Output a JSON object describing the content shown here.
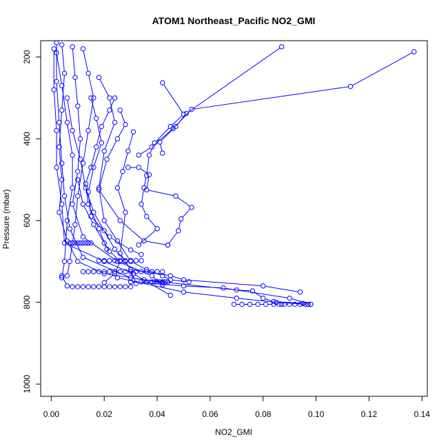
{
  "chart_data": {
    "type": "scatter",
    "title": "ATOM1 Northeast_Pacific NO2_GMI",
    "xlabel": "NO2_GMI",
    "ylabel": "Pressure (mbar)",
    "xlim": [
      -0.004,
      0.142
    ],
    "ylim": [
      1030,
      160
    ],
    "y_reversed": true,
    "x_ticks": [
      0.0,
      0.02,
      0.04,
      0.06,
      0.08,
      0.1,
      0.12,
      0.14
    ],
    "x_tick_labels": [
      "0.00",
      "0.02",
      "0.04",
      "0.06",
      "0.08",
      "0.10",
      "0.12",
      "0.14"
    ],
    "y_ticks": [
      200,
      400,
      600,
      800,
      1000
    ],
    "y_tick_labels": [
      "200",
      "400",
      "600",
      "800",
      "1000"
    ],
    "grid": false,
    "marker": "open-circle",
    "color": "#0000ff",
    "series": [
      {
        "values": [
          [
            0.004,
            170
          ],
          [
            0.005,
            240
          ],
          [
            0.004,
            330
          ],
          [
            0.003,
            420
          ],
          [
            0.004,
            500
          ],
          [
            0.003,
            580
          ],
          [
            0.006,
            650
          ],
          [
            0.01,
            700
          ],
          [
            0.02,
            730
          ],
          [
            0.04,
            750
          ]
        ]
      },
      {
        "values": [
          [
            0.002,
            165
          ],
          [
            0.002,
            260
          ],
          [
            0.003,
            360
          ],
          [
            0.004,
            460
          ],
          [
            0.005,
            540
          ],
          [
            0.007,
            620
          ],
          [
            0.012,
            690
          ],
          [
            0.03,
            740
          ],
          [
            0.042,
            752
          ]
        ]
      },
      {
        "values": [
          [
            0.001,
            180
          ],
          [
            0.001,
            280
          ],
          [
            0.002,
            380
          ],
          [
            0.002,
            470
          ],
          [
            0.004,
            560
          ],
          [
            0.005,
            655
          ],
          [
            0.02,
            700
          ],
          [
            0.031,
            730
          ],
          [
            0.045,
            783
          ]
        ]
      },
      {
        "values": [
          [
            0.008,
            175
          ],
          [
            0.009,
            250
          ],
          [
            0.01,
            320
          ],
          [
            0.011,
            400
          ],
          [
            0.01,
            480
          ],
          [
            0.008,
            560
          ],
          [
            0.012,
            640
          ],
          [
            0.025,
            700
          ],
          [
            0.038,
            735
          ],
          [
            0.042,
            757
          ]
        ]
      },
      {
        "values": [
          [
            0.012,
            180
          ],
          [
            0.014,
            240
          ],
          [
            0.016,
            300
          ],
          [
            0.014,
            380
          ],
          [
            0.012,
            460
          ],
          [
            0.01,
            540
          ],
          [
            0.009,
            610
          ],
          [
            0.008,
            655
          ],
          [
            0.007,
            700
          ],
          [
            0.006,
            735
          ]
        ]
      },
      {
        "values": [
          [
            0.002,
            190
          ],
          [
            0.004,
            270
          ],
          [
            0.006,
            360
          ],
          [
            0.008,
            440
          ],
          [
            0.008,
            520
          ],
          [
            0.006,
            600
          ],
          [
            0.005,
            700
          ],
          [
            0.004,
            740
          ]
        ]
      },
      {
        "values": [
          [
            0.018,
            250
          ],
          [
            0.022,
            300
          ],
          [
            0.024,
            360
          ],
          [
            0.02,
            430
          ],
          [
            0.018,
            520
          ],
          [
            0.02,
            600
          ],
          [
            0.025,
            650
          ],
          [
            0.03,
            700
          ],
          [
            0.036,
            720
          ],
          [
            0.042,
            735
          ],
          [
            0.045,
            745
          ],
          [
            0.052,
            750
          ]
        ]
      },
      {
        "values": [
          [
            0.026,
            330
          ],
          [
            0.028,
            365
          ],
          [
            0.025,
            400
          ],
          [
            0.021,
            450
          ],
          [
            0.018,
            525
          ],
          [
            0.026,
            600
          ],
          [
            0.035,
            650
          ],
          [
            0.044,
            660
          ]
        ]
      },
      {
        "values": [
          [
            0.031,
            383
          ],
          [
            0.029,
            430
          ],
          [
            0.027,
            480
          ],
          [
            0.025,
            520
          ],
          [
            0.028,
            580
          ],
          [
            0.026,
            680
          ],
          [
            0.03,
            720
          ],
          [
            0.032,
            754
          ]
        ]
      },
      {
        "values": [
          [
            0.042,
            263
          ],
          [
            0.05,
            340
          ],
          [
            0.045,
            370
          ],
          [
            0.039,
            410
          ],
          [
            0.037,
            440
          ],
          [
            0.036,
            490
          ],
          [
            0.035,
            520
          ],
          [
            0.034,
            560
          ],
          [
            0.036,
            590
          ],
          [
            0.04,
            620
          ],
          [
            0.033,
            660
          ]
        ]
      },
      {
        "values": [
          [
            0.029,
            470
          ],
          [
            0.033,
            470
          ],
          [
            0.037,
            488
          ],
          [
            0.036,
            525
          ],
          [
            0.047,
            540
          ],
          [
            0.053,
            568
          ],
          [
            0.049,
            596
          ],
          [
            0.048,
            625
          ],
          [
            0.044,
            660
          ]
        ]
      },
      {
        "values": [
          [
            0.033,
            440
          ],
          [
            0.038,
            420
          ],
          [
            0.046,
            375
          ],
          [
            0.053,
            328
          ],
          [
            0.113,
            272
          ],
          [
            0.137,
            187
          ]
        ]
      },
      {
        "values": [
          [
            0.042,
            435
          ],
          [
            0.041,
            408
          ],
          [
            0.047,
            370
          ],
          [
            0.051,
            338
          ],
          [
            0.087,
            175
          ]
        ]
      },
      {
        "values": [
          [
            0.03,
            720
          ],
          [
            0.045,
            735
          ],
          [
            0.05,
            745
          ],
          [
            0.08,
            760
          ],
          [
            0.094,
            775
          ]
        ]
      },
      {
        "values": [
          [
            0.03,
            750
          ],
          [
            0.05,
            760
          ],
          [
            0.065,
            765
          ],
          [
            0.09,
            790
          ],
          [
            0.098,
            805
          ]
        ]
      },
      {
        "values": [
          [
            0.025,
            740
          ],
          [
            0.05,
            775
          ],
          [
            0.07,
            790
          ],
          [
            0.085,
            800
          ],
          [
            0.097,
            805
          ]
        ]
      },
      {
        "values": [
          [
            0.035,
            745
          ],
          [
            0.07,
            770
          ],
          [
            0.076,
            772
          ],
          [
            0.08,
            790
          ],
          [
            0.084,
            798
          ],
          [
            0.095,
            803
          ]
        ]
      },
      {
        "values": [
          [
            0.069,
            805
          ],
          [
            0.072,
            805
          ],
          [
            0.075,
            805
          ],
          [
            0.078,
            805
          ],
          [
            0.081,
            805
          ],
          [
            0.084,
            805
          ],
          [
            0.086,
            805
          ],
          [
            0.087,
            805
          ],
          [
            0.088,
            805
          ],
          [
            0.09,
            805
          ],
          [
            0.092,
            805
          ],
          [
            0.094,
            805
          ],
          [
            0.096,
            805
          ],
          [
            0.097,
            805
          ],
          [
            0.098,
            805
          ]
        ]
      },
      {
        "values": [
          [
            0.004,
            735
          ],
          [
            0.006,
            760
          ],
          [
            0.008,
            762
          ],
          [
            0.01,
            762
          ],
          [
            0.012,
            762
          ],
          [
            0.014,
            762
          ],
          [
            0.016,
            762
          ],
          [
            0.018,
            762
          ],
          [
            0.02,
            762
          ],
          [
            0.022,
            762
          ],
          [
            0.024,
            762
          ],
          [
            0.026,
            762
          ],
          [
            0.028,
            762
          ],
          [
            0.03,
            762
          ]
        ]
      },
      {
        "values": [
          [
            0.012,
            725
          ],
          [
            0.014,
            725
          ],
          [
            0.016,
            725
          ],
          [
            0.018,
            725
          ],
          [
            0.02,
            725
          ],
          [
            0.022,
            725
          ],
          [
            0.024,
            725
          ],
          [
            0.026,
            725
          ],
          [
            0.028,
            725
          ],
          [
            0.03,
            725
          ],
          [
            0.032,
            725
          ],
          [
            0.034,
            725
          ],
          [
            0.036,
            725
          ],
          [
            0.038,
            725
          ],
          [
            0.04,
            725
          ],
          [
            0.042,
            725
          ]
        ]
      },
      {
        "values": [
          [
            0.018,
            698
          ],
          [
            0.02,
            698
          ],
          [
            0.022,
            698
          ],
          [
            0.024,
            698
          ],
          [
            0.026,
            698
          ],
          [
            0.028,
            698
          ],
          [
            0.03,
            698
          ],
          [
            0.032,
            698
          ],
          [
            0.034,
            698
          ]
        ]
      },
      {
        "values": [
          [
            0.007,
            655
          ],
          [
            0.008,
            655
          ],
          [
            0.009,
            655
          ],
          [
            0.01,
            655
          ],
          [
            0.011,
            655
          ],
          [
            0.012,
            655
          ],
          [
            0.013,
            655
          ],
          [
            0.014,
            655
          ],
          [
            0.015,
            655
          ]
        ]
      },
      {
        "values": [
          [
            0.034,
            750
          ],
          [
            0.036,
            750
          ],
          [
            0.038,
            750
          ],
          [
            0.039,
            750
          ],
          [
            0.04,
            750
          ],
          [
            0.041,
            750
          ],
          [
            0.042,
            750
          ],
          [
            0.043,
            750
          ],
          [
            0.044,
            750
          ]
        ]
      },
      {
        "values": [
          [
            0.01,
            500
          ],
          [
            0.012,
            560
          ],
          [
            0.016,
            610
          ],
          [
            0.02,
            655
          ],
          [
            0.022,
            675
          ],
          [
            0.026,
            700
          ],
          [
            0.024,
            730
          ],
          [
            0.02,
            752
          ]
        ]
      },
      {
        "values": [
          [
            0.015,
            300
          ],
          [
            0.017,
            350
          ],
          [
            0.019,
            410
          ],
          [
            0.016,
            470
          ],
          [
            0.014,
            530
          ],
          [
            0.015,
            590
          ],
          [
            0.022,
            640
          ],
          [
            0.03,
            672
          ],
          [
            0.034,
            683
          ]
        ]
      },
      {
        "values": [
          [
            0.006,
            300
          ],
          [
            0.008,
            380
          ],
          [
            0.011,
            450
          ],
          [
            0.013,
            520
          ],
          [
            0.016,
            580
          ],
          [
            0.02,
            625
          ],
          [
            0.024,
            670
          ],
          [
            0.028,
            700
          ]
        ]
      },
      {
        "values": [
          [
            0.024,
            300
          ],
          [
            0.022,
            330
          ],
          [
            0.019,
            370
          ],
          [
            0.017,
            420
          ],
          [
            0.015,
            470
          ],
          [
            0.013,
            510
          ],
          [
            0.014,
            560
          ],
          [
            0.018,
            620
          ],
          [
            0.021,
            670
          ]
        ]
      }
    ]
  }
}
